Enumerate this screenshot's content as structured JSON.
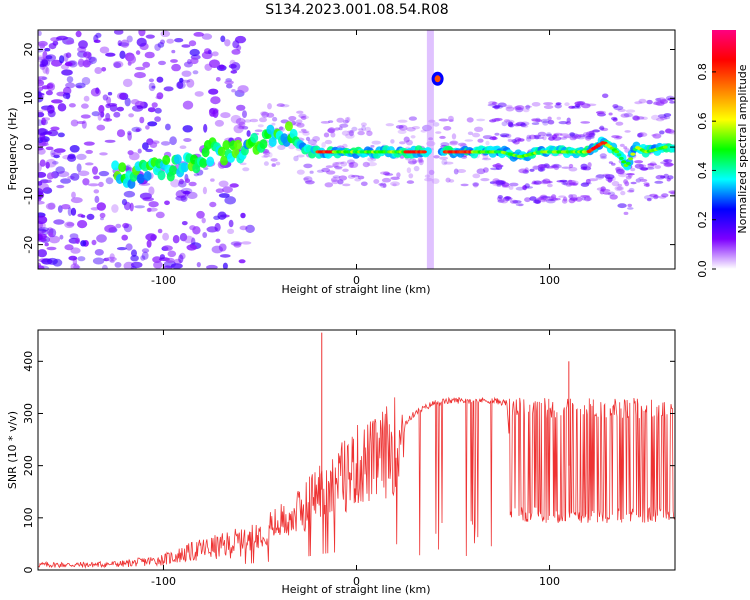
{
  "figure": {
    "title": "S134.2023.001.08.54.R08"
  },
  "chart_data": [
    {
      "type": "heatmap",
      "xlabel": "Height of straight line (km)",
      "ylabel": "Frequency (Hz)",
      "xlim": [
        -165,
        165
      ],
      "ylim": [
        -25,
        24
      ],
      "xticks": [
        -100,
        0,
        100
      ],
      "xtick_labels": [
        "-100",
        "0",
        "100"
      ],
      "yticks": [
        -20,
        -10,
        0,
        10,
        20
      ],
      "ytick_labels": [
        "-20",
        "-10",
        "0",
        "10",
        "20"
      ],
      "colorbar": {
        "label": "Normalized spectral amplitude",
        "range": [
          0.0,
          0.97
        ],
        "ticks": [
          0.0,
          0.2,
          0.4,
          0.6,
          0.8
        ],
        "tick_labels": [
          "0.0",
          "0.2",
          "0.4",
          "0.6",
          "0.8"
        ],
        "colors": [
          "#ffffff",
          "#7d00ff",
          "#0000ff",
          "#00ffff",
          "#00ff00",
          "#ffff00",
          "#ff8000",
          "#ff0000",
          "#ff0080"
        ]
      },
      "ridge": {
        "x": [
          -125,
          -115,
          -105,
          -95,
          -85,
          -75,
          -65,
          -55,
          -45,
          -35,
          -30,
          -25,
          -20,
          -15,
          -10,
          0,
          10,
          20,
          30,
          38,
          45,
          55,
          65,
          75,
          85,
          95,
          100,
          110,
          120,
          128,
          135,
          140,
          145,
          150,
          160,
          165
        ],
        "y": [
          -5,
          -6,
          -5,
          -4,
          -3,
          -1,
          -1,
          0,
          2,
          3,
          1,
          -1,
          -1,
          -1,
          -1,
          -1,
          -1,
          -1,
          -1,
          -1,
          -1,
          -1,
          -1,
          -1,
          -2,
          -1,
          -1,
          -1,
          -1,
          1,
          -1,
          -4,
          0,
          -1,
          0,
          0
        ]
      },
      "side_feature": {
        "x": 42,
        "y": 14
      }
    },
    {
      "type": "line",
      "xlabel": "Height of straight line (km)",
      "ylabel": "SNR (10 * v/v)",
      "xlim": [
        -165,
        165
      ],
      "ylim": [
        0,
        460
      ],
      "xticks": [
        -100,
        0,
        100
      ],
      "xtick_labels": [
        "-100",
        "0",
        "100"
      ],
      "yticks": [
        0,
        100,
        200,
        300,
        400
      ],
      "ytick_labels": [
        "0",
        "100",
        "200",
        "300",
        "400"
      ],
      "color": "#ee3333",
      "envelope": {
        "x": [
          -165,
          -140,
          -120,
          -100,
          -90,
          -80,
          -70,
          -60,
          -50,
          -40,
          -30,
          -20,
          -10,
          0,
          10,
          20,
          25,
          30,
          40,
          50,
          60,
          70,
          78,
          80,
          90,
          100,
          110,
          120,
          130,
          140,
          150,
          160,
          165
        ],
        "y": [
          10,
          10,
          12,
          20,
          30,
          40,
          45,
          55,
          70,
          90,
          110,
          150,
          170,
          200,
          210,
          240,
          280,
          300,
          320,
          325,
          325,
          325,
          320,
          200,
          200,
          200,
          200,
          200,
          200,
          200,
          200,
          200,
          200
        ]
      },
      "spikes": {
        "x": [
          -18,
          110
        ],
        "y": [
          455,
          400
        ]
      }
    }
  ]
}
